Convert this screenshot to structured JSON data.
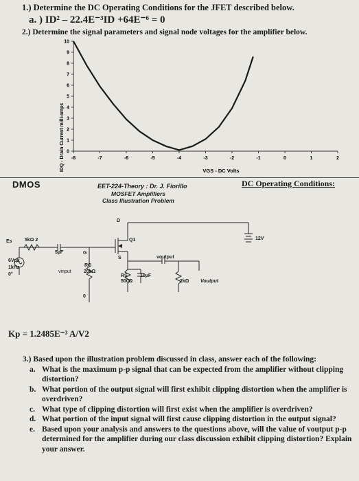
{
  "header": {
    "q1": "1.) Determine the DC Operating Conditions for the JFET described below.",
    "q1a": "a. ) ID² – 22.4E⁻³ID +64E⁻⁶ = 0",
    "q2": "2.) Determine the signal parameters and signal node voltages for the amplifier below."
  },
  "chart_data": {
    "type": "line",
    "title": "",
    "xlabel": "VGS - DC Volts",
    "ylabel": "IDQ - Drain Current milli-amps",
    "xlim": [
      -8,
      2
    ],
    "ylim": [
      0,
      10
    ],
    "x_ticks": [
      "-8",
      "-7",
      "-6",
      "-5",
      "-4",
      "-3",
      "-2",
      "-1",
      "0",
      "1",
      "2"
    ],
    "y_ticks": [
      "0",
      "1",
      "2",
      "3",
      "4",
      "5",
      "6",
      "7",
      "8",
      "9",
      "10"
    ],
    "grid": false,
    "series": [
      {
        "x": [
          -8,
          -7.5,
          -7,
          -6.5,
          -6,
          -5.5,
          -5,
          -4.5,
          -4,
          -3.5,
          -3,
          -2.5,
          -2,
          -1.5,
          -1.2
        ],
        "y": [
          10,
          7.8,
          5.9,
          4.3,
          2.9,
          1.8,
          1.0,
          0.45,
          0.1,
          0.45,
          1.1,
          2.2,
          3.9,
          6.4,
          8.6
        ]
      }
    ]
  },
  "section": {
    "left_title": "DMOS",
    "right_title": "DC Operating Conditions:"
  },
  "circuit": {
    "title1": "EET-224-Theory : Dr. J. Fiorillo",
    "title2": "MOSFET Amplifiers",
    "title3": "Class Illustration Problem",
    "es": "Es",
    "rs_source": "5kΩ 2",
    "cap_in": "5µF",
    "g": "G",
    "d": "D",
    "s": "S",
    "q1": "Q1",
    "src1": "6Vpk",
    "src2": "1kHz",
    "src3": "0°",
    "vinput": "vinput",
    "rg1": "RG",
    "rg2": "20kΩ",
    "zero": "0",
    "rs1": "RS",
    "rs2": "500Ω",
    "cap_s": "10µF",
    "voutput": "voutput",
    "rl": "2kΩ",
    "vout": "Voutput",
    "vdd": "12V"
  },
  "kp": "Kp = 1.2485E⁻³ A/V2",
  "q3": {
    "intro": "3.) Based upon the illustration problem discussed in class, answer each of the following:",
    "items": [
      {
        "letter": "a.",
        "text": "What is the maximum p-p signal that can be expected from the amplifier without clipping distortion?"
      },
      {
        "letter": "b.",
        "text": "What portion of the output signal will first exhibit clipping distortion when the amplifier is overdriven?"
      },
      {
        "letter": "c.",
        "text": "What type of clipping distortion will first exist when the amplifier is overdriven?"
      },
      {
        "letter": "d.",
        "text": "What portion of the input signal will first cause clipping distortion in the output signal?"
      },
      {
        "letter": "e.",
        "text": "Based upon your analysis and answers to the questions above, will the value of voutput p-p determined for the amplifier during our class discussion exhibit clipping distortion? Explain your answer."
      }
    ]
  }
}
